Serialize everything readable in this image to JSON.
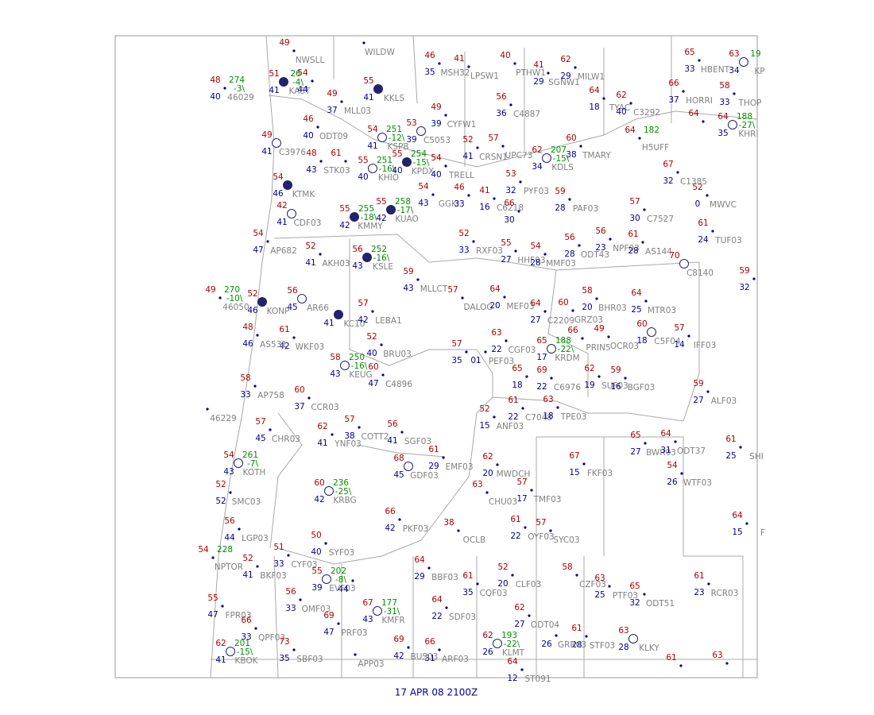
{
  "map": {
    "footer": "17 APR 08  2100Z",
    "stations": [
      {
        "id": "46029",
        "t": "48",
        "d": "40",
        "p": "274",
        "pt": "-3\\"
      },
      {
        "id": "KAST",
        "t": "51",
        "d": "41",
        "p": "26",
        "pt": "-4\\"
      },
      {
        "t": "54",
        "d": "44"
      },
      {
        "id": "MLL03",
        "t": "49",
        "d": "37"
      },
      {
        "id": "ODT09",
        "t": "46",
        "d": "40"
      },
      {
        "id": "NWSLL",
        "t": "49"
      },
      {
        "id": "WILDW"
      },
      {
        "id": "MSH32",
        "t": "46",
        "d": "35"
      },
      {
        "id": "LPSW1",
        "t": "41"
      },
      {
        "id": "PTHW1",
        "t": "40"
      },
      {
        "id": "SGNW1",
        "t": "41",
        "d": "29"
      },
      {
        "id": "MILW1",
        "t": "62",
        "d": "29"
      },
      {
        "id": "KKLS",
        "t": "55",
        "d": "41"
      },
      {
        "id": "CYFW1",
        "t": "49",
        "d": "39"
      },
      {
        "id": "C4887",
        "t": "56",
        "d": "36"
      },
      {
        "id": "TYAC",
        "t": "64",
        "d": "18"
      },
      {
        "id": "C3292",
        "t": "62",
        "d": "40"
      },
      {
        "id": "HBENT",
        "t": "65",
        "d": "33"
      },
      {
        "id": "KP",
        "t": "63",
        "d": "34",
        "p": "19"
      },
      {
        "id": "HORRI",
        "t": "66",
        "d": "37"
      },
      {
        "id": "THOP",
        "t": "58",
        "d": "33"
      },
      {
        "id": "KHRI",
        "t": "64",
        "d": "35",
        "p": "188",
        "pt": "-27\\"
      },
      {
        "t": "64"
      },
      {
        "id": "H5UFF",
        "t": "64",
        "p": "182"
      },
      {
        "id": "KSPB",
        "t": "54",
        "d": "41",
        "p": "251",
        "pt": "-12\\"
      },
      {
        "id": "C5053",
        "t": "53",
        "d": "39"
      },
      {
        "id": "C3976",
        "t": "49",
        "d": "41"
      },
      {
        "id": "STK03",
        "t": "48",
        "d": "43"
      },
      {
        "t": "61"
      },
      {
        "id": "KHIO",
        "t": "55",
        "d": "40",
        "p": "251",
        "pt": "-16\\"
      },
      {
        "id": "KPDX",
        "t": "55",
        "d": "40",
        "p": "254",
        "pt": "-15\\"
      },
      {
        "id": "TRELL",
        "t": "54",
        "d": "40"
      },
      {
        "id": "CRSN1",
        "t": "52",
        "d": "41"
      },
      {
        "id": "UPC73",
        "t": "57"
      },
      {
        "id": "KDLS",
        "t": "62",
        "d": "34",
        "p": "207",
        "pt": "-15\\"
      },
      {
        "id": "TMARY",
        "t": "60",
        "d": "38"
      },
      {
        "id": "PYF03",
        "t": "53",
        "d": "32"
      },
      {
        "id": "KTMK",
        "t": "54",
        "d": "46"
      },
      {
        "id": "GGKI",
        "t": "54",
        "d": "43"
      },
      {
        "t": "46",
        "d": "33"
      },
      {
        "id": "C6218",
        "t": "41",
        "d": "16"
      },
      {
        "t": "66",
        "d": "30"
      },
      {
        "id": "PAF03",
        "t": "59",
        "d": "28"
      },
      {
        "id": "C7527",
        "t": "57",
        "d": "30"
      },
      {
        "id": "C1385",
        "t": "67",
        "d": "32"
      },
      {
        "id": "MWVC",
        "t": "52",
        "d": "0"
      },
      {
        "id": "TUF03",
        "t": "61",
        "d": "24"
      },
      {
        "id": "KUAO",
        "t": "55",
        "d": "42",
        "p": "258",
        "pt": "-17\\"
      },
      {
        "id": "KMMY",
        "t": "55",
        "d": "42",
        "p": "255",
        "pt": "-18\\"
      },
      {
        "id": "CDF03",
        "t": "42",
        "d": "41"
      },
      {
        "id": "AP682",
        "t": "54",
        "d": "47"
      },
      {
        "id": "AKH03",
        "t": "52",
        "d": "41"
      },
      {
        "id": "KSLE",
        "t": "56",
        "d": "43",
        "p": "252",
        "pt": "-16\\"
      },
      {
        "id": "RXF03",
        "t": "52",
        "d": "33"
      },
      {
        "id": "HHF03",
        "t": "55",
        "d": "27"
      },
      {
        "id": "MMF03",
        "t": "54",
        "d": "28"
      },
      {
        "id": "ODT43",
        "t": "56",
        "d": "28"
      },
      {
        "id": "NPF03",
        "t": "56",
        "d": "23"
      },
      {
        "id": "AS144",
        "t": "61",
        "d": "28"
      },
      {
        "id": "C8140",
        "t": "70"
      },
      {
        "t": "59",
        "d": "32"
      },
      {
        "id": "46050",
        "t": "49",
        "p": "270",
        "pt": "-10\\"
      },
      {
        "id": "KONP",
        "t": "52",
        "d": "46"
      },
      {
        "id": "AR66",
        "t": "56",
        "d": "45"
      },
      {
        "id": "MLLCT",
        "t": "59",
        "d": "43"
      },
      {
        "id": "DALOG",
        "t": "57"
      },
      {
        "id": "MEF03",
        "t": "64",
        "d": "20"
      },
      {
        "id": "C2209",
        "t": "64",
        "d": "27"
      },
      {
        "id": "GRZ03",
        "t": "60"
      },
      {
        "id": "BHR03",
        "t": "58",
        "d": "20"
      },
      {
        "id": "MTR03",
        "t": "64",
        "d": "25"
      },
      {
        "id": "KC10",
        "d": "41"
      },
      {
        "id": "LEBA1",
        "t": "57",
        "d": "42"
      },
      {
        "id": "WKF03",
        "t": "61",
        "d": "42"
      },
      {
        "id": "AS531",
        "t": "48",
        "d": "46"
      },
      {
        "id": "BRU03",
        "t": "52",
        "d": "40"
      },
      {
        "t": "57",
        "d": "35"
      },
      {
        "id": "PEF03",
        "d": "01"
      },
      {
        "id": "CGF03",
        "t": "63",
        "d": "22"
      },
      {
        "id": "KRDM",
        "t": "65",
        "d": "17",
        "p": "188",
        "pt": "-22\\"
      },
      {
        "id": "PRIN5",
        "t": "66"
      },
      {
        "id": "OCR03",
        "t": "49"
      },
      {
        "id": "C5F04",
        "t": "60",
        "d": "18"
      },
      {
        "id": "IFF03",
        "t": "57",
        "d": "14"
      },
      {
        "id": "SUF03",
        "t": "62",
        "d": "19"
      },
      {
        "id": "BGF03",
        "t": "59",
        "d": "16"
      },
      {
        "t": "65",
        "d": "18"
      },
      {
        "id": "C6976",
        "t": "69",
        "d": "22"
      },
      {
        "id": "C7048",
        "t": "61",
        "d": "22"
      },
      {
        "id": "TPE03",
        "t": "63",
        "d": "18"
      },
      {
        "id": "ANF03",
        "t": "52",
        "d": "15"
      },
      {
        "id": "KEUG",
        "t": "58",
        "d": "43",
        "p": "250",
        "pt": "-16\\"
      },
      {
        "id": "C4896",
        "t": "60",
        "d": "47"
      },
      {
        "id": "AP758",
        "t": "58",
        "d": "33"
      },
      {
        "id": "46229"
      },
      {
        "id": "CCR03",
        "t": "60",
        "d": "37"
      },
      {
        "id": "CHR03",
        "t": "57",
        "d": "45"
      },
      {
        "id": "YNF03",
        "t": "62",
        "d": "41"
      },
      {
        "id": "COTT2",
        "t": "57",
        "d": "38"
      },
      {
        "id": "SGF03",
        "t": "56",
        "d": "41"
      },
      {
        "id": "EMF03",
        "t": "61",
        "d": "29"
      },
      {
        "id": "GDF03",
        "t": "68",
        "d": "45"
      },
      {
        "id": "MWDCH",
        "t": "62",
        "d": "20"
      },
      {
        "id": "CHU03",
        "t": "63"
      },
      {
        "id": "TMF03",
        "t": "57",
        "d": "17"
      },
      {
        "id": "FKF03",
        "t": "67",
        "d": "15"
      },
      {
        "id": "BWR03",
        "t": "65",
        "d": "27"
      },
      {
        "id": "ODT37",
        "t": "64",
        "d": "31"
      },
      {
        "id": "WTF03",
        "t": "54",
        "d": "26"
      },
      {
        "id": "SHI",
        "t": "61",
        "d": "25"
      },
      {
        "id": "ALF03",
        "t": "59",
        "d": "27"
      },
      {
        "id": "KOTH",
        "t": "54",
        "d": "43",
        "p": "261",
        "pt": "-7\\"
      },
      {
        "id": "SMC03",
        "t": "52",
        "d": "52"
      },
      {
        "id": "KRBG",
        "t": "60",
        "d": "42",
        "p": "236",
        "pt": "-25\\"
      },
      {
        "id": "PKF03",
        "t": "66",
        "d": "42"
      },
      {
        "id": "OCLB",
        "t": "38"
      },
      {
        "id": "OYF03",
        "t": "61",
        "d": "22"
      },
      {
        "id": "SYC03",
        "t": "57"
      },
      {
        "id": "F",
        "t": "64",
        "d": "15"
      },
      {
        "id": "LGP03",
        "t": "56",
        "d": "44"
      },
      {
        "id": "NPTOR",
        "t": "54",
        "p": "228"
      },
      {
        "id": "CYF03",
        "t": "51",
        "d": "33"
      },
      {
        "id": "BKF03",
        "t": "52",
        "d": "41"
      },
      {
        "id": "SYF03",
        "t": "50",
        "d": "40"
      },
      {
        "id": "EVF03",
        "t": "55",
        "d": "39",
        "p": "202",
        "pt": "-8\\"
      },
      {
        "d": "44"
      },
      {
        "id": "OMF03",
        "t": "56",
        "d": "33"
      },
      {
        "id": "BBF03",
        "t": "64",
        "d": "29"
      },
      {
        "id": "CQF03",
        "t": "61",
        "d": "35"
      },
      {
        "id": "CLF03",
        "t": "52",
        "d": "20"
      },
      {
        "id": "CZF03",
        "t": "58"
      },
      {
        "id": "PTF03",
        "t": "63",
        "d": "25"
      },
      {
        "id": "ODT51",
        "t": "65",
        "d": "32"
      },
      {
        "id": "RCR03",
        "t": "61",
        "d": "23"
      },
      {
        "id": "KMFR",
        "t": "67",
        "d": "43",
        "p": "177",
        "pt": "-31\\"
      },
      {
        "id": "PRF03",
        "t": "69",
        "d": "47"
      },
      {
        "id": "SDF03",
        "t": "64",
        "d": "22"
      },
      {
        "id": "ODT04",
        "t": "62",
        "d": "27"
      },
      {
        "id": "STF03",
        "t": "61",
        "d": "28"
      },
      {
        "id": "GRB03",
        "d": "26"
      },
      {
        "id": "KLKY",
        "t": "63",
        "d": "28"
      },
      {
        "id": "KLMT",
        "t": "62",
        "d": "26",
        "p": "193",
        "pt": "-22\\"
      },
      {
        "id": "ARF03",
        "t": "66",
        "d": "31"
      },
      {
        "id": "BUS03",
        "t": "69",
        "d": "42"
      },
      {
        "id": "SBF03",
        "t": "73",
        "d": "35"
      },
      {
        "id": "FPR03",
        "t": "55",
        "d": "47"
      },
      {
        "id": "QPF03",
        "t": "66",
        "d": "33"
      },
      {
        "id": "KBOK",
        "t": "62",
        "d": "41",
        "p": "201",
        "pt": "-15\\"
      },
      {
        "id": "APP03"
      },
      {
        "id": "ST091",
        "t": "64",
        "d": "12"
      },
      {
        "t": "61"
      },
      {
        "t": "63"
      }
    ]
  }
}
